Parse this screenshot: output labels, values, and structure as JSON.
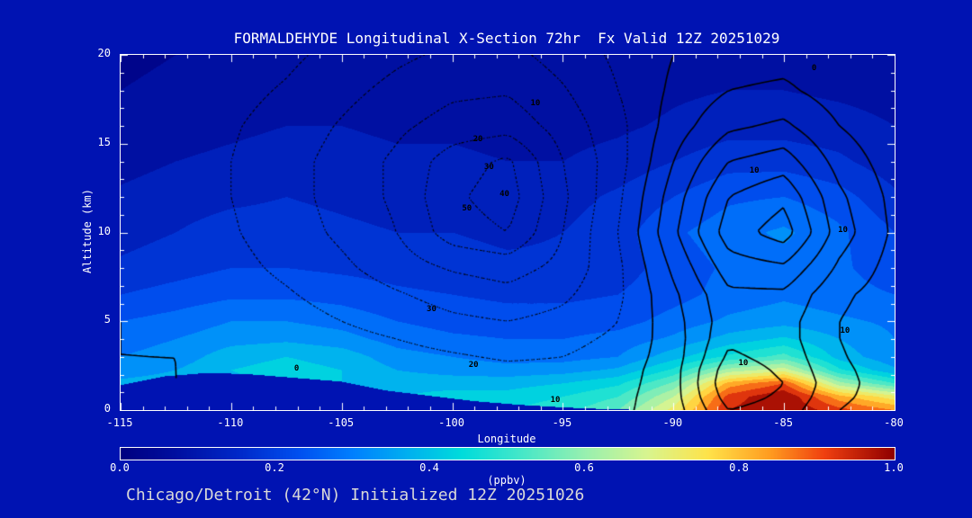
{
  "page": {
    "background": "#0013b2",
    "footer": "Chicago/Detroit (42°N) Initialized 12Z 20251026"
  },
  "chart_data": {
    "type": "contour",
    "title": "FORMALDEHYDE Longitudinal X-Section 72hr  Fx Valid 12Z 20251029",
    "xlabel": "Longitude",
    "ylabel": "Altitude (km)",
    "xlim": [
      -115,
      -80
    ],
    "ylim": [
      0,
      20
    ],
    "xticks": [
      -115,
      -110,
      -105,
      -100,
      -95,
      -90,
      -85,
      -80
    ],
    "yticks": [
      0,
      5,
      10,
      15,
      20
    ],
    "colorbar": {
      "label": "(ppbv)",
      "min": 0.0,
      "max": 1.0,
      "ticks": [
        "0.0",
        "0.2",
        "0.4",
        "0.6",
        "0.8",
        "1.0"
      ]
    },
    "colormap": [
      [
        0.0,
        "#000080"
      ],
      [
        0.07,
        "#000FA0"
      ],
      [
        0.15,
        "#0028C8"
      ],
      [
        0.23,
        "#0050F0"
      ],
      [
        0.3,
        "#0080FF"
      ],
      [
        0.37,
        "#00B0F0"
      ],
      [
        0.44,
        "#00DCDC"
      ],
      [
        0.52,
        "#48E8C8"
      ],
      [
        0.6,
        "#98F0B0"
      ],
      [
        0.68,
        "#D8F590"
      ],
      [
        0.76,
        "#FFE34A"
      ],
      [
        0.84,
        "#FF9C20"
      ],
      [
        0.91,
        "#F04010"
      ],
      [
        1.0,
        "#900000"
      ]
    ],
    "fill_field": {
      "units": "ppbv",
      "level_step": 0.05,
      "lons": [
        -115,
        -112.5,
        -110,
        -107.5,
        -105,
        -102.5,
        -100,
        -97.5,
        -95,
        -92.5,
        -90,
        -87.5,
        -85,
        -82.5,
        -80
      ],
      "alts": [
        0,
        0.75,
        1.5,
        2.25,
        3,
        4,
        5,
        6.5,
        8,
        10,
        12,
        14,
        16,
        18,
        20
      ],
      "values_ppbv": [
        [
          0.4,
          0.4,
          0.4,
          0.4,
          0.4,
          0.42,
          0.44,
          0.45,
          0.48,
          0.55,
          0.72,
          0.95,
          1.0,
          0.92,
          0.85
        ],
        [
          0.38,
          0.38,
          0.39,
          0.4,
          0.4,
          0.4,
          0.42,
          0.42,
          0.45,
          0.5,
          0.65,
          0.92,
          1.0,
          0.82,
          0.72
        ],
        [
          0.36,
          0.37,
          0.39,
          0.4,
          0.4,
          0.38,
          0.38,
          0.38,
          0.4,
          0.44,
          0.56,
          0.82,
          0.9,
          0.62,
          0.5
        ],
        [
          0.33,
          0.35,
          0.4,
          0.42,
          0.4,
          0.35,
          0.33,
          0.32,
          0.33,
          0.36,
          0.46,
          0.62,
          0.68,
          0.46,
          0.36
        ],
        [
          0.3,
          0.32,
          0.38,
          0.4,
          0.38,
          0.32,
          0.3,
          0.28,
          0.28,
          0.3,
          0.38,
          0.46,
          0.52,
          0.38,
          0.31
        ],
        [
          0.28,
          0.3,
          0.33,
          0.34,
          0.32,
          0.28,
          0.26,
          0.25,
          0.25,
          0.27,
          0.31,
          0.37,
          0.41,
          0.35,
          0.3
        ],
        [
          0.25,
          0.27,
          0.3,
          0.3,
          0.28,
          0.25,
          0.23,
          0.22,
          0.22,
          0.23,
          0.27,
          0.31,
          0.33,
          0.31,
          0.29
        ],
        [
          0.2,
          0.22,
          0.24,
          0.24,
          0.23,
          0.21,
          0.2,
          0.19,
          0.19,
          0.2,
          0.23,
          0.27,
          0.29,
          0.27,
          0.25
        ],
        [
          0.16,
          0.18,
          0.2,
          0.2,
          0.19,
          0.18,
          0.17,
          0.16,
          0.16,
          0.18,
          0.22,
          0.26,
          0.28,
          0.26,
          0.22
        ],
        [
          0.13,
          0.15,
          0.17,
          0.17,
          0.16,
          0.15,
          0.15,
          0.14,
          0.15,
          0.18,
          0.24,
          0.28,
          0.31,
          0.26,
          0.2
        ],
        [
          0.11,
          0.13,
          0.14,
          0.15,
          0.14,
          0.13,
          0.13,
          0.12,
          0.13,
          0.16,
          0.2,
          0.24,
          0.25,
          0.22,
          0.16
        ],
        [
          0.08,
          0.1,
          0.11,
          0.12,
          0.12,
          0.11,
          0.11,
          0.1,
          0.1,
          0.12,
          0.15,
          0.18,
          0.18,
          0.16,
          0.12
        ],
        [
          0.06,
          0.08,
          0.09,
          0.1,
          0.1,
          0.09,
          0.09,
          0.08,
          0.08,
          0.09,
          0.11,
          0.13,
          0.13,
          0.12,
          0.1
        ],
        [
          0.05,
          0.06,
          0.07,
          0.08,
          0.08,
          0.08,
          0.07,
          0.07,
          0.07,
          0.07,
          0.09,
          0.1,
          0.1,
          0.09,
          0.08
        ],
        [
          0.04,
          0.05,
          0.06,
          0.06,
          0.07,
          0.07,
          0.06,
          0.06,
          0.06,
          0.06,
          0.07,
          0.08,
          0.08,
          0.07,
          0.06
        ]
      ]
    },
    "terrain_km": {
      "lons": [
        -115,
        -113,
        -111,
        -109,
        -107,
        -105,
        -103,
        -101,
        -99,
        -97,
        -95,
        -93,
        -91,
        -80
      ],
      "heights": [
        1.4,
        1.9,
        2.1,
        2.0,
        1.8,
        1.6,
        1.1,
        0.8,
        0.5,
        0.3,
        0.15,
        0.05,
        0,
        0
      ]
    },
    "overlay_contours": {
      "solid_levels": [
        0,
        10,
        20,
        30,
        40,
        50
      ],
      "dotted_levels": [
        -10,
        -20,
        -30,
        -40,
        -50
      ],
      "lons": [
        -115,
        -112.5,
        -110,
        -107.5,
        -105,
        -102.5,
        -100,
        -97.5,
        -95,
        -92.5,
        -90,
        -87.5,
        -85,
        -82.5,
        -80
      ],
      "alts": [
        0,
        0.75,
        1.5,
        2.25,
        3,
        4,
        5,
        6.5,
        8,
        10,
        12,
        14,
        16,
        18,
        20
      ],
      "values": [
        [
          2,
          1,
          0,
          0,
          -1,
          -2,
          -3,
          -4,
          -4,
          -2,
          5,
          30,
          25,
          10,
          4
        ],
        [
          2,
          1,
          0,
          0,
          -1,
          -2,
          -4,
          -5,
          -5,
          -3,
          6,
          35,
          28,
          12,
          5
        ],
        [
          1,
          0,
          0,
          -1,
          -2,
          -3,
          -5,
          -6,
          -6,
          -4,
          6,
          38,
          30,
          13,
          5
        ],
        [
          1,
          0,
          -1,
          -2,
          -3,
          -5,
          -7,
          -8,
          -8,
          -5,
          6,
          36,
          28,
          12,
          5
        ],
        [
          0,
          0,
          -1,
          -3,
          -5,
          -7,
          -9,
          -11,
          -10,
          -6,
          5,
          32,
          26,
          11,
          4
        ],
        [
          0,
          -1,
          -2,
          -4,
          -7,
          -10,
          -13,
          -15,
          -13,
          -8,
          5,
          28,
          24,
          10,
          4
        ],
        [
          0,
          -1,
          -3,
          -6,
          -10,
          -14,
          -18,
          -20,
          -17,
          -10,
          6,
          26,
          24,
          10,
          4
        ],
        [
          -1,
          -2,
          -5,
          -9,
          -14,
          -19,
          -24,
          -27,
          -22,
          -12,
          8,
          28,
          28,
          12,
          5
        ],
        [
          -1,
          -3,
          -7,
          -12,
          -18,
          -25,
          -31,
          -34,
          -27,
          -12,
          12,
          35,
          38,
          18,
          6
        ],
        [
          -2,
          -4,
          -9,
          -15,
          -22,
          -30,
          -45,
          -50,
          -30,
          -10,
          18,
          45,
          55,
          25,
          8
        ],
        [
          -2,
          -5,
          -10,
          -16,
          -24,
          -32,
          -48,
          -55,
          -32,
          -12,
          15,
          40,
          48,
          22,
          7
        ],
        [
          -2,
          -5,
          -10,
          -16,
          -24,
          -32,
          -45,
          -52,
          -30,
          -14,
          10,
          30,
          35,
          16,
          5
        ],
        [
          -2,
          -4,
          -9,
          -14,
          -21,
          -28,
          -34,
          -36,
          -26,
          -13,
          5,
          18,
          22,
          10,
          3
        ],
        [
          -1,
          -3,
          -7,
          -11,
          -17,
          -23,
          -28,
          -29,
          -21,
          -10,
          2,
          10,
          12,
          5,
          1
        ],
        [
          -1,
          -2,
          -5,
          -8,
          -13,
          -18,
          -22,
          -23,
          -16,
          -8,
          0,
          5,
          6,
          2,
          0
        ]
      ],
      "labels": [
        {
          "text": "10",
          "lon": -96.2,
          "alt": 17.2
        },
        {
          "text": "20",
          "lon": -98.8,
          "alt": 15.2
        },
        {
          "text": "30",
          "lon": -98.3,
          "alt": 13.6
        },
        {
          "text": "40",
          "lon": -97.6,
          "alt": 12.1
        },
        {
          "text": "50",
          "lon": -99.3,
          "alt": 11.3
        },
        {
          "text": "30",
          "lon": -100.9,
          "alt": 5.6
        },
        {
          "text": "20",
          "lon": -99.0,
          "alt": 2.5
        },
        {
          "text": "10",
          "lon": -95.3,
          "alt": 0.5
        },
        {
          "text": "0",
          "lon": -83.6,
          "alt": 19.2
        },
        {
          "text": "10",
          "lon": -86.3,
          "alt": 13.4
        },
        {
          "text": "10",
          "lon": -82.3,
          "alt": 10.1
        },
        {
          "text": "10",
          "lon": -82.2,
          "alt": 4.4
        },
        {
          "text": "10",
          "lon": -86.8,
          "alt": 2.6
        },
        {
          "text": "0",
          "lon": -107.0,
          "alt": 2.3
        }
      ]
    }
  }
}
